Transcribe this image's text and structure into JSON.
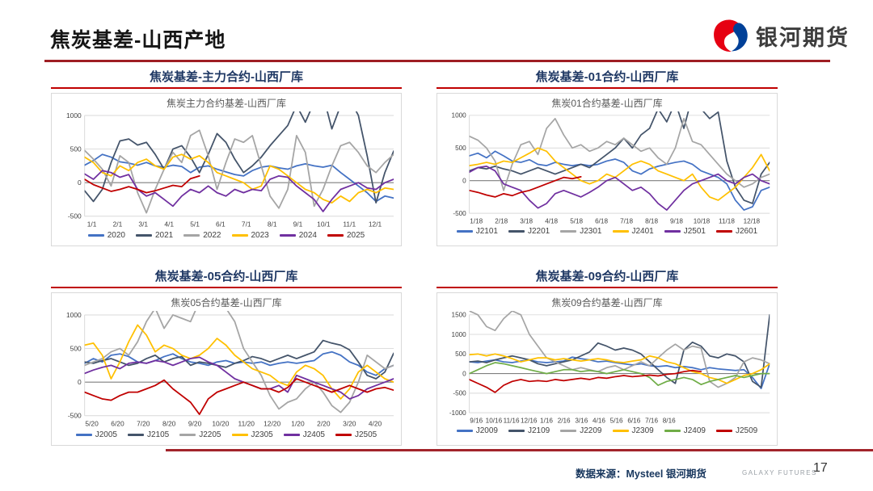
{
  "page": {
    "title": "焦炭基差-山西产地"
  },
  "logo": {
    "text": "银河期货",
    "red": "#e60012",
    "blue": "#004098"
  },
  "footer": {
    "source": "数据来源：Mysteel 银河期货",
    "brand": "GALAXY FUTURES",
    "page_number": "17"
  },
  "colors": {
    "blue": "#4472c4",
    "navy": "#44546a",
    "gray": "#a5a5a5",
    "yellow": "#ffc000",
    "purple": "#7030a0",
    "red": "#c00000",
    "green": "#70ad47",
    "panel_title": "#1f3864",
    "panel_rule": "#c00000",
    "title_rule": "#9e1e23"
  },
  "chart_data": [
    {
      "type": "line",
      "header": "焦炭基差-主力合约-山西厂库",
      "title": "焦炭主力合约基差-山西厂库",
      "ylim": [
        -500,
        1000
      ],
      "yticks": [
        1000,
        500,
        0,
        -500
      ],
      "x_labels": [
        "1/1",
        "2/1",
        "3/1",
        "4/1",
        "5/1",
        "6/1",
        "7/1",
        "8/1",
        "9/1",
        "10/1",
        "11/1",
        "12/1"
      ],
      "label_span": 1,
      "n_points": 36,
      "grid": true,
      "legend_position": "bottom",
      "series": [
        {
          "name": "2020",
          "color": "#4472c4",
          "values": [
            260,
            330,
            420,
            380,
            310,
            290,
            260,
            300,
            250,
            230,
            260,
            240,
            150,
            230,
            250,
            200,
            160,
            120,
            100,
            180,
            230,
            250,
            220,
            200,
            250,
            280,
            250,
            230,
            260,
            150,
            50,
            -50,
            -150,
            -280,
            -200,
            -230
          ]
        },
        {
          "name": "2021",
          "color": "#44546a",
          "values": [
            -120,
            -280,
            -100,
            300,
            620,
            650,
            560,
            600,
            420,
            200,
            500,
            550,
            380,
            150,
            420,
            730,
            600,
            350,
            150,
            250,
            380,
            550,
            700,
            850,
            1150,
            900,
            1200,
            1300,
            800,
            1150,
            1250,
            1000,
            400,
            -300,
            150,
            470
          ]
        },
        {
          "name": "2022",
          "color": "#a5a5a5",
          "values": [
            480,
            350,
            200,
            -50,
            400,
            300,
            -150,
            -450,
            -100,
            200,
            450,
            300,
            700,
            780,
            400,
            -100,
            300,
            650,
            600,
            700,
            250,
            -200,
            -380,
            -100,
            700,
            450,
            -350,
            -100,
            250,
            550,
            600,
            450,
            250,
            150,
            300,
            420
          ]
        },
        {
          "name": "2023",
          "color": "#ffc000",
          "values": [
            380,
            300,
            150,
            100,
            250,
            180,
            300,
            350,
            250,
            200,
            380,
            420,
            350,
            400,
            300,
            150,
            100,
            50,
            0,
            -100,
            -50,
            250,
            200,
            100,
            0,
            -100,
            -150,
            -250,
            -300,
            -200,
            -280,
            -150,
            -100,
            -150,
            -80,
            -100
          ]
        },
        {
          "name": "2024",
          "color": "#7030a0",
          "values": [
            130,
            50,
            180,
            150,
            80,
            120,
            -100,
            -200,
            -150,
            -250,
            -350,
            -200,
            -100,
            -150,
            -50,
            -150,
            -200,
            -100,
            -150,
            -100,
            -120,
            50,
            100,
            80,
            -50,
            -150,
            -250,
            -430,
            -250,
            -100,
            -50,
            0,
            -80,
            -100,
            0,
            50
          ]
        },
        {
          "name": "2025",
          "color": "#c00000",
          "values": [
            50,
            -30,
            -80,
            -130,
            -100,
            -60,
            -100,
            -150,
            -120,
            -80,
            -40,
            -60,
            60,
            100
          ]
        }
      ]
    },
    {
      "type": "line",
      "header": "焦炭基差-01合约-山西厂库",
      "title": "焦炭01合约基差-山西厂库",
      "ylim": [
        -500,
        1000
      ],
      "yticks": [
        1000,
        500,
        0,
        -500
      ],
      "x_labels": [
        "1/18",
        "2/18",
        "3/18",
        "4/18",
        "5/18",
        "6/18",
        "7/18",
        "8/18",
        "9/18",
        "10/18",
        "11/18",
        "12/18"
      ],
      "label_span": 1,
      "n_points": 36,
      "grid": true,
      "legend_position": "bottom",
      "series": [
        {
          "name": "J2101",
          "color": "#4472c4",
          "values": [
            380,
            420,
            350,
            450,
            380,
            300,
            280,
            320,
            250,
            230,
            280,
            250,
            230,
            250,
            230,
            250,
            300,
            330,
            280,
            150,
            100,
            180,
            220,
            250,
            280,
            300,
            250,
            150,
            100,
            50,
            -50,
            -300,
            -450,
            -400,
            -150,
            -100
          ]
        },
        {
          "name": "J2201",
          "color": "#44546a",
          "values": [
            150,
            200,
            180,
            220,
            180,
            150,
            100,
            150,
            200,
            150,
            100,
            150,
            200,
            250,
            200,
            300,
            400,
            500,
            650,
            500,
            700,
            800,
            1100,
            900,
            1200,
            800,
            1300,
            1100,
            950,
            1050,
            300,
            -100,
            -300,
            -350,
            100,
            280
          ]
        },
        {
          "name": "J2301",
          "color": "#a5a5a5",
          "values": [
            680,
            620,
            500,
            300,
            -150,
            250,
            550,
            600,
            400,
            800,
            950,
            700,
            500,
            550,
            450,
            500,
            600,
            550,
            650,
            550,
            450,
            500,
            350,
            250,
            500,
            950,
            600,
            550,
            400,
            250,
            100,
            0,
            -100,
            -50,
            50,
            100
          ]
        },
        {
          "name": "J2401",
          "color": "#ffc000",
          "values": [
            230,
            250,
            280,
            250,
            300,
            280,
            350,
            420,
            500,
            450,
            300,
            200,
            100,
            0,
            -50,
            0,
            100,
            50,
            150,
            250,
            300,
            250,
            150,
            100,
            50,
            0,
            100,
            -100,
            -250,
            -300,
            -200,
            -100,
            50,
            200,
            400,
            150
          ]
        },
        {
          "name": "J2501",
          "color": "#7030a0",
          "values": [
            130,
            200,
            220,
            150,
            -50,
            -100,
            -150,
            -300,
            -420,
            -350,
            -200,
            -150,
            -200,
            -250,
            -180,
            -100,
            0,
            50,
            -50,
            -150,
            -100,
            -200,
            -350,
            -450,
            -300,
            -150,
            -50,
            0,
            50,
            100,
            0,
            -50,
            50,
            100,
            0,
            -50
          ]
        },
        {
          "name": "J2601",
          "color": "#c00000",
          "values": [
            -150,
            -180,
            -220,
            -250,
            -200,
            -230,
            -180,
            -150,
            -100,
            -50,
            0,
            50,
            30,
            60
          ]
        }
      ]
    },
    {
      "type": "line",
      "header": "焦炭基差-05合约-山西厂库",
      "title": "焦炭05合约基差-山西厂库",
      "ylim": [
        -500,
        1000
      ],
      "yticks": [
        1000,
        500,
        0,
        -500
      ],
      "x_labels": [
        "5/20",
        "6/20",
        "7/20",
        "8/20",
        "9/20",
        "10/20",
        "11/20",
        "12/20",
        "1/20",
        "2/20",
        "3/20",
        "4/20"
      ],
      "label_span": 1,
      "n_points": 36,
      "grid": true,
      "legend_position": "bottom",
      "series": [
        {
          "name": "J2005",
          "color": "#4472c4",
          "values": [
            280,
            350,
            300,
            400,
            420,
            380,
            300,
            280,
            320,
            380,
            420,
            350,
            300,
            280,
            250,
            300,
            320,
            280,
            300,
            280,
            300,
            250,
            280,
            300,
            280,
            300,
            320,
            420,
            450,
            400,
            300,
            250,
            150,
            100,
            200,
            250
          ]
        },
        {
          "name": "J2105",
          "color": "#44546a",
          "values": [
            300,
            280,
            320,
            350,
            300,
            250,
            280,
            350,
            400,
            300,
            350,
            380,
            250,
            300,
            280,
            250,
            220,
            280,
            320,
            380,
            350,
            300,
            350,
            400,
            350,
            400,
            450,
            620,
            580,
            550,
            480,
            300,
            100,
            50,
            150,
            430
          ]
        },
        {
          "name": "J2205",
          "color": "#a5a5a5",
          "values": [
            250,
            300,
            350,
            450,
            500,
            400,
            600,
            900,
            1100,
            800,
            1000,
            950,
            900,
            1200,
            1100,
            1300,
            1100,
            900,
            500,
            300,
            100,
            -200,
            -400,
            -300,
            -250,
            -100,
            0,
            -150,
            -350,
            -450,
            -300,
            0,
            400,
            300,
            200,
            250
          ]
        },
        {
          "name": "J2305",
          "color": "#ffc000",
          "values": [
            550,
            580,
            400,
            50,
            300,
            600,
            850,
            700,
            450,
            550,
            500,
            400,
            350,
            400,
            500,
            650,
            550,
            400,
            300,
            200,
            150,
            100,
            0,
            -50,
            150,
            250,
            200,
            100,
            -100,
            -250,
            -100,
            150,
            250,
            150,
            50,
            0
          ]
        },
        {
          "name": "J2405",
          "color": "#7030a0",
          "values": [
            130,
            180,
            220,
            250,
            200,
            280,
            300,
            280,
            320,
            300,
            250,
            300,
            350,
            370,
            300,
            250,
            150,
            50,
            0,
            -50,
            -100,
            -100,
            -50,
            -150,
            100,
            50,
            0,
            -50,
            -100,
            -150,
            -250,
            -200,
            -100,
            -50,
            0,
            50
          ]
        },
        {
          "name": "J2505",
          "color": "#c00000",
          "values": [
            -150,
            -200,
            -250,
            -270,
            -200,
            -150,
            -150,
            -100,
            -50,
            30,
            -100,
            -200,
            -300,
            -480,
            -250,
            -150,
            -100,
            -50,
            0,
            -50,
            -100,
            -100,
            -150,
            -80,
            50,
            0,
            -50,
            -100,
            -150,
            -100,
            -50,
            -100,
            -150,
            -100,
            -80,
            -120
          ]
        }
      ]
    },
    {
      "type": "line",
      "header": "焦炭基差-09合约-山西厂库",
      "title": "焦炭09合约基差-山西厂库",
      "ylim": [
        -1000,
        1500
      ],
      "yticks": [
        1500,
        1000,
        500,
        0,
        -500,
        -1000
      ],
      "x_labels": [
        "9/16",
        "10/16",
        "11/16",
        "12/16",
        "1/16",
        "2/16",
        "3/16",
        "4/16",
        "5/16",
        "6/16",
        "7/16",
        "8/16"
      ],
      "label_span": 0.7,
      "n_points": 36,
      "grid": true,
      "legend_position": "bottom",
      "series": [
        {
          "name": "J2009",
          "color": "#4472c4",
          "values": [
            300,
            280,
            320,
            350,
            300,
            280,
            320,
            350,
            300,
            280,
            300,
            320,
            420,
            380,
            350,
            300,
            320,
            280,
            250,
            220,
            250,
            200,
            180,
            200,
            150,
            180,
            150,
            100,
            150,
            120,
            100,
            80,
            100,
            -100,
            -380,
            250
          ]
        },
        {
          "name": "J2109",
          "color": "#44546a",
          "values": [
            300,
            320,
            280,
            350,
            400,
            450,
            400,
            350,
            250,
            200,
            250,
            300,
            350,
            450,
            550,
            780,
            700,
            600,
            650,
            600,
            500,
            300,
            100,
            -100,
            -250,
            600,
            800,
            700,
            450,
            400,
            500,
            450,
            300,
            -200,
            -350,
            1500
          ]
        },
        {
          "name": "J2209",
          "color": "#a5a5a5",
          "values": [
            1600,
            1500,
            1200,
            1100,
            1400,
            1600,
            1500,
            1000,
            700,
            400,
            300,
            200,
            100,
            150,
            100,
            50,
            150,
            200,
            100,
            200,
            300,
            200,
            400,
            600,
            750,
            600,
            700,
            650,
            -200,
            -350,
            -250,
            -100,
            300,
            400,
            350,
            250
          ]
        },
        {
          "name": "J2309",
          "color": "#ffc000",
          "values": [
            480,
            500,
            450,
            500,
            450,
            380,
            300,
            350,
            400,
            400,
            350,
            380,
            350,
            320,
            350,
            380,
            350,
            300,
            280,
            320,
            350,
            450,
            400,
            300,
            250,
            150,
            50,
            0,
            -100,
            -150,
            -250,
            -150,
            -50,
            0,
            100,
            250
          ]
        },
        {
          "name": "J2409",
          "color": "#70ad47",
          "values": [
            0,
            100,
            200,
            280,
            250,
            200,
            150,
            100,
            50,
            0,
            50,
            100,
            100,
            50,
            80,
            50,
            0,
            50,
            100,
            50,
            0,
            -100,
            -300,
            -200,
            -150,
            -100,
            -150,
            -280,
            -200,
            -150,
            -100,
            -50,
            -100,
            -50,
            0,
            0
          ]
        },
        {
          "name": "J2509",
          "color": "#c00000",
          "values": [
            -150,
            -250,
            -350,
            -480,
            -300,
            -200,
            -150,
            -200,
            -180,
            -200,
            -150,
            -180,
            -150,
            -120,
            -150,
            -100,
            -120,
            -80,
            -50,
            -80,
            -60,
            -40,
            -60,
            -20,
            0,
            50,
            80,
            50
          ]
        }
      ]
    }
  ]
}
